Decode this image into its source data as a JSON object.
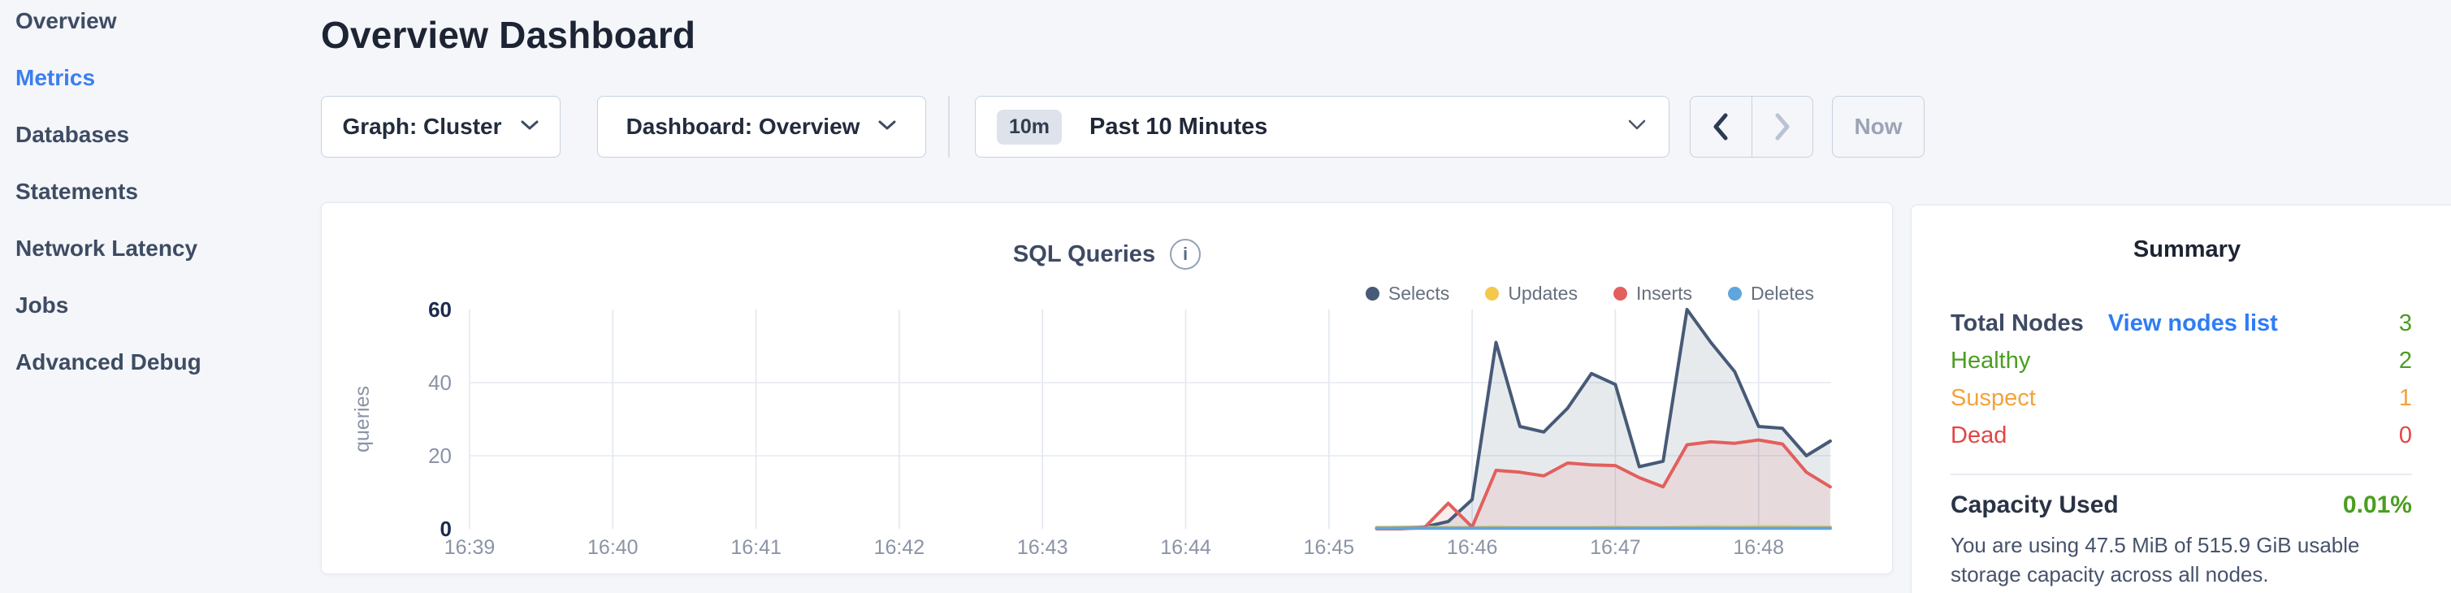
{
  "page": {
    "title": "Overview Dashboard"
  },
  "sidebar": {
    "items": [
      {
        "label": "Overview",
        "active": false
      },
      {
        "label": "Metrics",
        "active": true
      },
      {
        "label": "Databases",
        "active": false
      },
      {
        "label": "Statements",
        "active": false
      },
      {
        "label": "Network Latency",
        "active": false
      },
      {
        "label": "Jobs",
        "active": false
      },
      {
        "label": "Advanced Debug",
        "active": false
      }
    ]
  },
  "controls": {
    "graph_dropdown": "Graph: Cluster",
    "dashboard_dropdown": "Dashboard: Overview",
    "time_badge": "10m",
    "time_label": "Past 10 Minutes",
    "now_label": "Now"
  },
  "chart_card": {
    "title": "SQL Queries"
  },
  "chart_data": {
    "type": "area",
    "title": "SQL Queries",
    "ylabel": "queries",
    "ylim": [
      0,
      60
    ],
    "yticks": [
      0,
      20,
      40,
      60
    ],
    "grid": "on",
    "legend_position": "top-right",
    "x_tick_labels": [
      "16:39",
      "16:40",
      "16:41",
      "16:42",
      "16:43",
      "16:44",
      "16:45",
      "16:46",
      "16:47",
      "16:48"
    ],
    "x_seconds_from_1639": [
      380,
      390,
      400,
      410,
      420,
      430,
      440,
      450,
      460,
      470,
      480,
      490,
      500,
      510,
      520,
      530,
      540,
      550,
      560,
      570
    ],
    "series": [
      {
        "name": "Selects",
        "color": "#475a77",
        "fill": "rgba(71,90,119,0.13)",
        "values": [
          0.3,
          0.4,
          0.5,
          2,
          8,
          51,
          28,
          26.5,
          33,
          42.5,
          39.5,
          17,
          18.5,
          60,
          51,
          43,
          28,
          27.5,
          20,
          24
        ]
      },
      {
        "name": "Updates",
        "color": "#f2c94c",
        "fill": "none",
        "values": [
          0.4,
          0.4,
          0.4,
          0.4,
          0.4,
          0.5,
          0.4,
          0.4,
          0.4,
          0.4,
          0.5,
          0.4,
          0.4,
          0.5,
          0.6,
          0.5,
          0.6,
          0.6,
          0.5,
          0.5
        ]
      },
      {
        "name": "Inserts",
        "color": "#e25f5d",
        "fill": "rgba(226,95,93,0.11)",
        "values": [
          0,
          0,
          0.3,
          7,
          0.5,
          16,
          15.5,
          14.5,
          18,
          17.5,
          17.3,
          14,
          11.5,
          23,
          23.8,
          23.4,
          24.3,
          23.2,
          15.5,
          11.5
        ]
      },
      {
        "name": "Deletes",
        "color": "#60a5dc",
        "fill": "none",
        "values": [
          0.15,
          0.15,
          0.15,
          0.15,
          0.15,
          0.15,
          0.15,
          0.15,
          0.15,
          0.15,
          0.15,
          0.15,
          0.15,
          0.15,
          0.15,
          0.15,
          0.15,
          0.15,
          0.15,
          0.15
        ]
      }
    ]
  },
  "summary": {
    "title": "Summary",
    "total_nodes": {
      "label": "Total Nodes",
      "link": "View nodes list",
      "value": "3"
    },
    "healthy": {
      "label": "Healthy",
      "value": "2"
    },
    "suspect": {
      "label": "Suspect",
      "value": "1"
    },
    "dead": {
      "label": "Dead",
      "value": "0"
    },
    "capacity": {
      "label": "Capacity Used",
      "value": "0.01%"
    },
    "capacity_note": "You are using 47.5 MiB of 515.9 GiB usable storage capacity across all nodes.",
    "colors": {
      "green": "#4a9e1f",
      "orange": "#f2a33c",
      "red": "#e34543",
      "link": "#2f7cf6"
    }
  }
}
